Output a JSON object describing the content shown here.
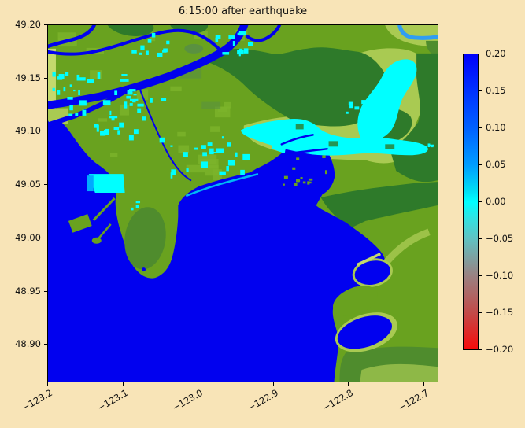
{
  "figure": {
    "title": "6:15:00 after earthquake",
    "background_color": "#f8e4b7"
  },
  "chart_data": {
    "type": "heatmap",
    "title": "6:15:00 after earthquake",
    "description": "Tsunami/sea-surface displacement map (metres) over a coastal river-delta region at time 6:15:00 after earthquake; raster heatmap over terrain",
    "x_axis": {
      "label": "",
      "ticks": [
        "−123.2",
        "−123.1",
        "−123.0",
        "−122.9",
        "−122.8",
        "−122.7"
      ],
      "tick_values": [
        -123.2,
        -123.1,
        -123.0,
        -122.9,
        -122.8,
        -122.7
      ],
      "range": [
        -123.2,
        -122.68
      ],
      "tick_rotation_deg": 30
    },
    "y_axis": {
      "label": "",
      "ticks": [
        "49.20",
        "49.15",
        "49.10",
        "49.05",
        "49.00",
        "48.95",
        "48.90"
      ],
      "tick_values": [
        49.2,
        49.15,
        49.1,
        49.05,
        49.0,
        48.95,
        48.9
      ],
      "range": [
        48.86,
        49.2
      ]
    },
    "colorbar": {
      "ticks": [
        "0.20",
        "0.15",
        "0.10",
        "0.05",
        "0.00",
        "−0.05",
        "−0.10",
        "−0.15",
        "−0.20"
      ],
      "tick_values": [
        0.2,
        0.15,
        0.1,
        0.05,
        0.0,
        -0.05,
        -0.1,
        -0.15,
        -0.2
      ],
      "vmin": -0.2,
      "vmax": 0.2,
      "gradient_stops": [
        {
          "pos": 0.0,
          "color": "#0000fb"
        },
        {
          "pos": 0.125,
          "color": "#0032ff"
        },
        {
          "pos": 0.25,
          "color": "#0061ff"
        },
        {
          "pos": 0.375,
          "color": "#009dff"
        },
        {
          "pos": 0.46,
          "color": "#00dcf4"
        },
        {
          "pos": 0.5,
          "color": "#00ffff"
        },
        {
          "pos": 0.56,
          "color": "#35e0e0"
        },
        {
          "pos": 0.625,
          "color": "#60c2c2"
        },
        {
          "pos": 0.75,
          "color": "#9a8282"
        },
        {
          "pos": 0.875,
          "color": "#c24b49"
        },
        {
          "pos": 1.0,
          "color": "#f70b0b"
        }
      ]
    },
    "regions": [
      {
        "feature": "open strait and bay water",
        "approx_value": -0.2
      },
      {
        "feature": "river channels through delta",
        "approx_value": -0.2
      },
      {
        "feature": "lighter upstream river channel (top right)",
        "approx_value": -0.07
      },
      {
        "feature": "flooded lowland patches (cyan)",
        "approx_value": 0.0
      },
      {
        "feature": "dry land",
        "approx_value": null
      }
    ],
    "grid": false,
    "legend_position": "right-colorbar"
  },
  "map": {
    "colors": {
      "ocean": "#0101ef",
      "river": "#0101ee",
      "river_light": "#2f9df2",
      "land": "#69a21f",
      "land_bright": "#7cb42b",
      "land_mid": "#5a9140",
      "land_pale": "#a9ca52",
      "land_palest": "#c4d96d",
      "upland_dark": "#2e7a2a",
      "upland_mid": "#4f8c2d",
      "flood_cyan": "#00ffff",
      "shore_cyan": "#00ccf5",
      "shore_blue": "#00aaff"
    }
  }
}
